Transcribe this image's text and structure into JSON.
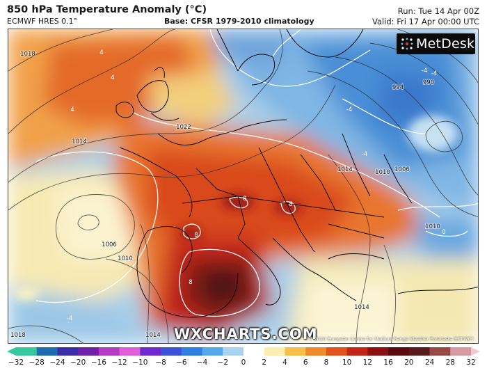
{
  "header": {
    "title": "850 hPa Temperature Anomaly (°C)",
    "model": "ECMWF HRES 0.1°",
    "base": "Base: CFSR 1979-2010 climatology",
    "run": "Run: Tue 14 Apr 00Z",
    "valid": "Valid: Fri 17 Apr 00:00 UTC"
  },
  "map": {
    "brand_logo": "MetDesk",
    "watermark": "WXCHARTS.COM",
    "credit": "© 2020 European Centre for Medium-Range Weather Forecasts (ECMWF)",
    "isobar_labels": [
      "1018",
      "1014",
      "1022",
      "1006",
      "1010",
      "994",
      "990",
      "1006",
      "1010",
      "1014",
      "1010",
      "1014",
      "1018",
      "1014"
    ],
    "anomaly_labels": [
      "4",
      "4",
      "4",
      "8",
      "8",
      "8",
      "8",
      "-4",
      "-4",
      "-4",
      "-4",
      "-4",
      "0"
    ]
  },
  "colorbar": {
    "ticks": [
      "−32",
      "−28",
      "−24",
      "−20",
      "−16",
      "−12",
      "−10",
      "−8",
      "−6",
      "−4",
      "−2",
      "0",
      "2",
      "4",
      "6",
      "8",
      "10",
      "12",
      "16",
      "20",
      "24",
      "28",
      "32"
    ],
    "colors": [
      "#36c9a0",
      "#1e6bb0",
      "#3a2ea8",
      "#7020a8",
      "#b43cc4",
      "#e05fd8",
      "#6e2ad0",
      "#3c52d8",
      "#2d7fe0",
      "#55a8ea",
      "#a8d4f2",
      "#ffffff",
      "#fbefb0",
      "#f6c04a",
      "#f08a2c",
      "#e2541c",
      "#c42615",
      "#8c1010",
      "#5a0a0a",
      "#5a1a1a",
      "#9a4a46",
      "#d89aa0",
      "#f2c8d2"
    ]
  }
}
